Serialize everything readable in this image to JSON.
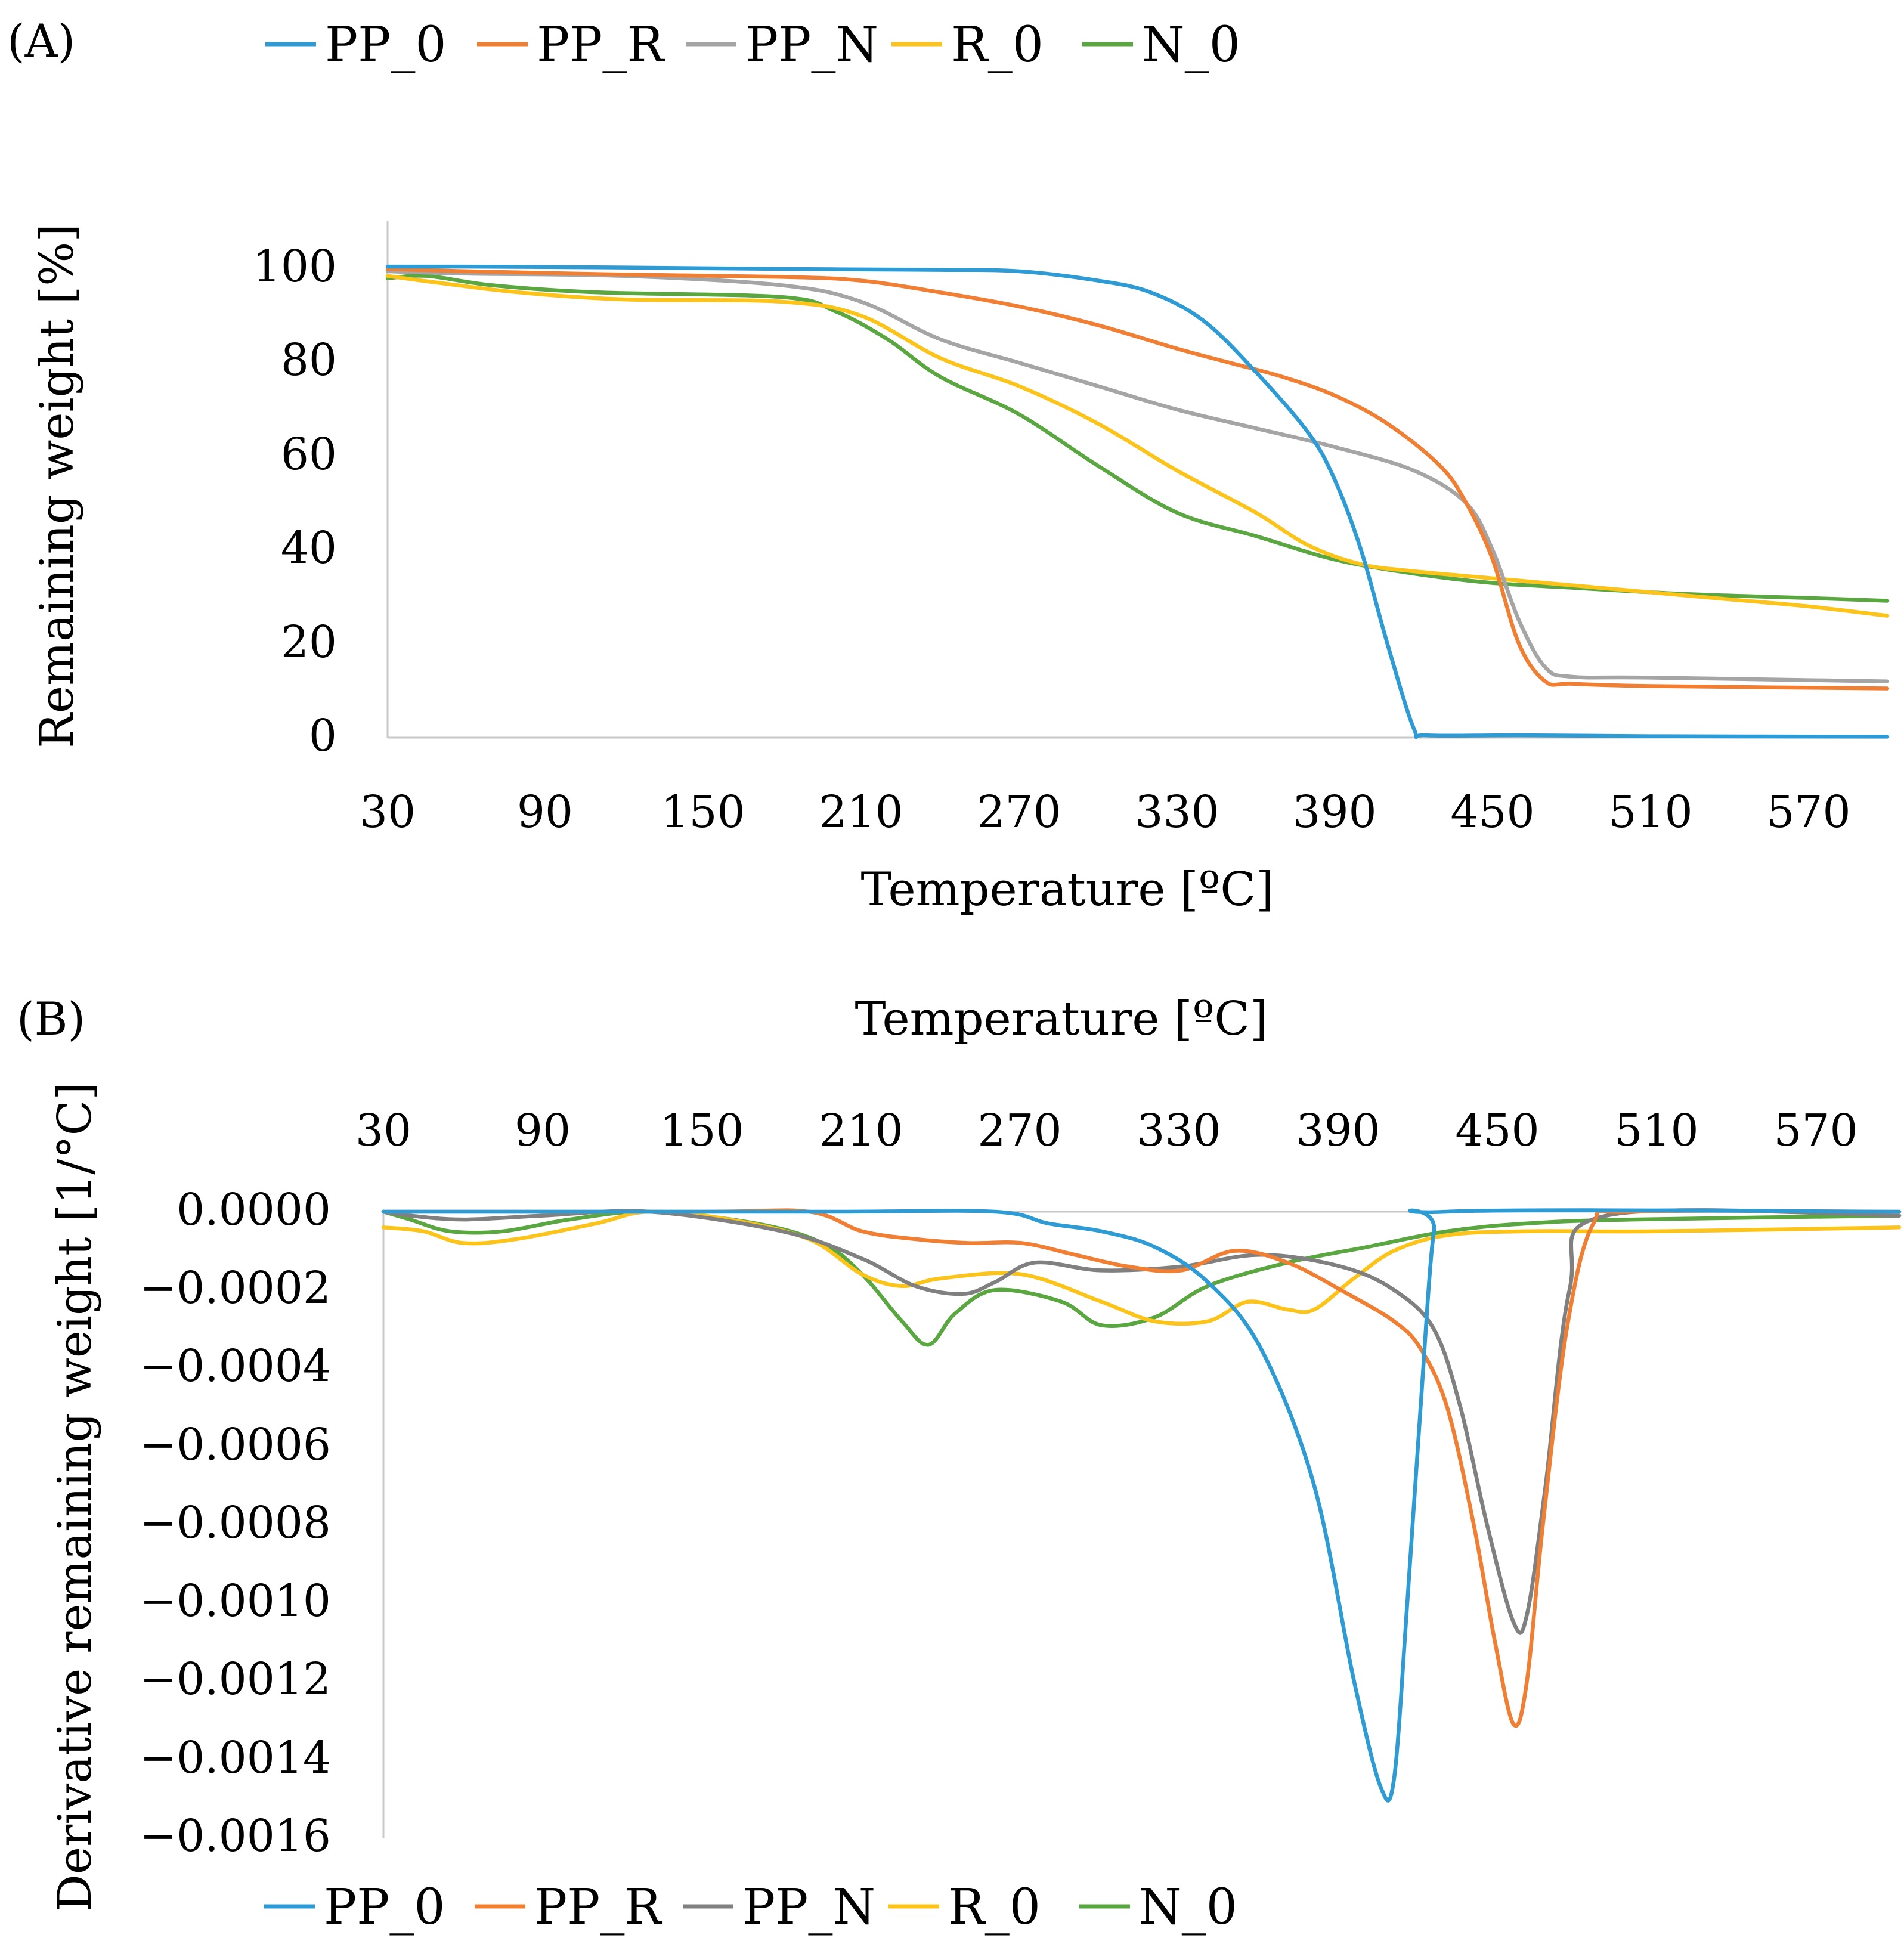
{
  "figure": {
    "colors": {
      "PP_0": "#2e9bd4",
      "PP_R": "#f07f33",
      "PP_N_A": "#a5a5a5",
      "PP_N_B": "#808080",
      "R_0": "#fcc31a",
      "N_0": "#5aa640"
    }
  },
  "chart_data": [
    {
      "panel_label": "(A)",
      "type": "line",
      "title": "",
      "xlabel": "Temperature [ºC]",
      "ylabel": "Remaining weight [%]",
      "xlim": [
        30,
        600
      ],
      "ylim": [
        0,
        110
      ],
      "x_ticks": [
        "30",
        "90",
        "150",
        "210",
        "270",
        "330",
        "390",
        "450",
        "510",
        "570"
      ],
      "y_ticks": [
        "100",
        "80",
        "60",
        "40",
        "20",
        "0"
      ],
      "legend": [
        "PP_0",
        "PP_R",
        "PP_N",
        "R_0",
        "N_0"
      ],
      "legend_position": "top",
      "series": [
        {
          "name": "PP_0",
          "color": "#2e9bd4",
          "points": [
            [
              30,
              100.5
            ],
            [
              60,
              100.5
            ],
            [
              120,
              100.3
            ],
            [
              180,
              100
            ],
            [
              240,
              99.8
            ],
            [
              270,
              99.5
            ],
            [
              300,
              97.5
            ],
            [
              320,
              95
            ],
            [
              340,
              89
            ],
            [
              360,
              78
            ],
            [
              380,
              65
            ],
            [
              390,
              55
            ],
            [
              400,
              40
            ],
            [
              410,
              20
            ],
            [
              420,
              2
            ],
            [
              425,
              0.5
            ],
            [
              460,
              0.5
            ],
            [
              510,
              0.3
            ],
            [
              600,
              0.2
            ]
          ]
        },
        {
          "name": "PP_R",
          "color": "#f07f33",
          "points": [
            [
              30,
              100
            ],
            [
              60,
              99.5
            ],
            [
              120,
              98.8
            ],
            [
              180,
              98.3
            ],
            [
              210,
              97.5
            ],
            [
              240,
              95
            ],
            [
              270,
              92
            ],
            [
              300,
              88
            ],
            [
              330,
              83
            ],
            [
              350,
              80
            ],
            [
              370,
              77
            ],
            [
              390,
              73
            ],
            [
              410,
              67
            ],
            [
              430,
              58
            ],
            [
              440,
              50
            ],
            [
              450,
              38
            ],
            [
              460,
              20
            ],
            [
              470,
              12
            ],
            [
              480,
              11.5
            ],
            [
              510,
              11
            ],
            [
              600,
              10.5
            ]
          ]
        },
        {
          "name": "PP_N",
          "color": "#a5a5a5",
          "points": [
            [
              30,
              99.5
            ],
            [
              60,
              99
            ],
            [
              120,
              98.5
            ],
            [
              180,
              96.5
            ],
            [
              210,
              93
            ],
            [
              240,
              85
            ],
            [
              270,
              80
            ],
            [
              300,
              75
            ],
            [
              330,
              70
            ],
            [
              360,
              66
            ],
            [
              390,
              62
            ],
            [
              420,
              57
            ],
            [
              440,
              50
            ],
            [
              450,
              40
            ],
            [
              460,
              25
            ],
            [
              470,
              15
            ],
            [
              480,
              13
            ],
            [
              510,
              12.8
            ],
            [
              600,
              12
            ]
          ]
        },
        {
          "name": "R_0",
          "color": "#fcc31a",
          "points": [
            [
              30,
              98.5
            ],
            [
              50,
              97
            ],
            [
              80,
              95
            ],
            [
              120,
              93.5
            ],
            [
              180,
              93
            ],
            [
              210,
              90
            ],
            [
              240,
              81
            ],
            [
              270,
              75
            ],
            [
              300,
              67
            ],
            [
              330,
              57
            ],
            [
              360,
              48
            ],
            [
              380,
              41
            ],
            [
              400,
              37
            ],
            [
              420,
              35.5
            ],
            [
              450,
              34
            ],
            [
              480,
              32.5
            ],
            [
              510,
              31
            ],
            [
              540,
              29.5
            ],
            [
              570,
              28
            ],
            [
              600,
              26
            ]
          ]
        },
        {
          "name": "N_0",
          "color": "#5aa640",
          "points": [
            [
              30,
              98
            ],
            [
              45,
              98.5
            ],
            [
              70,
              96.5
            ],
            [
              110,
              95
            ],
            [
              180,
              94
            ],
            [
              200,
              91
            ],
            [
              220,
              85
            ],
            [
              240,
              77
            ],
            [
              270,
              69
            ],
            [
              300,
              58
            ],
            [
              330,
              48
            ],
            [
              360,
              43
            ],
            [
              390,
              38
            ],
            [
              420,
              35
            ],
            [
              450,
              33
            ],
            [
              480,
              32
            ],
            [
              510,
              31
            ],
            [
              540,
              30.3
            ],
            [
              570,
              29.8
            ],
            [
              600,
              29.2
            ]
          ]
        }
      ]
    },
    {
      "panel_label": "(B)",
      "type": "line",
      "title": "",
      "xlabel": "Temperature [ºC]",
      "ylabel": "Derivative remaining weight [1/°C]",
      "xlim": [
        30,
        600
      ],
      "ylim": [
        -0.0016,
        0
      ],
      "x_ticks": [
        "30",
        "90",
        "150",
        "210",
        "270",
        "330",
        "390",
        "450",
        "510",
        "570"
      ],
      "y_ticks": [
        "0.0000",
        "−0.0002",
        "−0.0004",
        "−0.0006",
        "−0.0008",
        "−0.0010",
        "−0.0012",
        "−0.0014",
        "−0.0016"
      ],
      "legend": [
        "PP_0",
        "PP_R",
        "PP_N",
        "R_0",
        "N_0"
      ],
      "legend_position": "bottom",
      "series": [
        {
          "name": "PP_0",
          "color": "#2e9bd4",
          "points": [
            [
              30,
              0
            ],
            [
              100,
              0
            ],
            [
              200,
              0
            ],
            [
              260,
              0
            ],
            [
              280,
              -3e-05
            ],
            [
              300,
              -5e-05
            ],
            [
              320,
              -9e-05
            ],
            [
              340,
              -0.00018
            ],
            [
              360,
              -0.00035
            ],
            [
              380,
              -0.0007
            ],
            [
              395,
              -0.0012
            ],
            [
              405,
              -0.00147
            ],
            [
              410,
              -0.00145
            ],
            [
              415,
              -0.001
            ],
            [
              420,
              -0.0005
            ],
            [
              425,
              -5e-05
            ],
            [
              430,
              0
            ],
            [
              600,
              0
            ]
          ]
        },
        {
          "name": "PP_R",
          "color": "#f07f33",
          "points": [
            [
              30,
              0
            ],
            [
              150,
              0
            ],
            [
              190,
              0
            ],
            [
              210,
              -5e-05
            ],
            [
              230,
              -7e-05
            ],
            [
              250,
              -8e-05
            ],
            [
              270,
              -8e-05
            ],
            [
              290,
              -0.00011
            ],
            [
              310,
              -0.00014
            ],
            [
              330,
              -0.00015
            ],
            [
              350,
              -0.0001
            ],
            [
              370,
              -0.00013
            ],
            [
              390,
              -0.0002
            ],
            [
              410,
              -0.00028
            ],
            [
              420,
              -0.00035
            ],
            [
              430,
              -0.0005
            ],
            [
              440,
              -0.0008
            ],
            [
              448,
              -0.0011
            ],
            [
              455,
              -0.00131
            ],
            [
              460,
              -0.0012
            ],
            [
              466,
              -0.0008
            ],
            [
              475,
              -0.0003
            ],
            [
              485,
              -3e-05
            ],
            [
              500,
              0
            ],
            [
              600,
              0
            ]
          ]
        },
        {
          "name": "PP_N",
          "color": "#808080",
          "points": [
            [
              30,
              0
            ],
            [
              40,
              -1e-05
            ],
            [
              60,
              -2e-05
            ],
            [
              90,
              -1e-05
            ],
            [
              130,
              0
            ],
            [
              180,
              -5e-05
            ],
            [
              210,
              -0.00012
            ],
            [
              230,
              -0.00019
            ],
            [
              248,
              -0.00021
            ],
            [
              260,
              -0.00018
            ],
            [
              275,
              -0.00013
            ],
            [
              300,
              -0.00015
            ],
            [
              330,
              -0.00014
            ],
            [
              360,
              -0.00011
            ],
            [
              390,
              -0.00014
            ],
            [
              410,
              -0.0002
            ],
            [
              425,
              -0.0003
            ],
            [
              435,
              -0.0005
            ],
            [
              445,
              -0.0008
            ],
            [
              455,
              -0.00105
            ],
            [
              460,
              -0.00103
            ],
            [
              467,
              -0.0007
            ],
            [
              476,
              -0.0002
            ],
            [
              490,
              -1e-05
            ],
            [
              600,
              -1e-05
            ]
          ]
        },
        {
          "name": "R_0",
          "color": "#fcc31a",
          "points": [
            [
              30,
              -4e-05
            ],
            [
              45,
              -5e-05
            ],
            [
              60,
              -8e-05
            ],
            [
              80,
              -7e-05
            ],
            [
              110,
              -3e-05
            ],
            [
              130,
              0
            ],
            [
              160,
              -2e-05
            ],
            [
              190,
              -7e-05
            ],
            [
              210,
              -0.00016
            ],
            [
              225,
              -0.00019
            ],
            [
              240,
              -0.00017
            ],
            [
              270,
              -0.00016
            ],
            [
              300,
              -0.00023
            ],
            [
              320,
              -0.00028
            ],
            [
              340,
              -0.00028
            ],
            [
              355,
              -0.00023
            ],
            [
              370,
              -0.00025
            ],
            [
              380,
              -0.00025
            ],
            [
              395,
              -0.00017
            ],
            [
              410,
              -0.0001
            ],
            [
              430,
              -6e-05
            ],
            [
              460,
              -5e-05
            ],
            [
              510,
              -5e-05
            ],
            [
              600,
              -4e-05
            ]
          ]
        },
        {
          "name": "N_0",
          "color": "#5aa640",
          "points": [
            [
              30,
              0
            ],
            [
              40,
              -2e-05
            ],
            [
              55,
              -5e-05
            ],
            [
              75,
              -5e-05
            ],
            [
              100,
              -2e-05
            ],
            [
              130,
              0
            ],
            [
              170,
              -3e-05
            ],
            [
              195,
              -8e-05
            ],
            [
              210,
              -0.00016
            ],
            [
              225,
              -0.00028
            ],
            [
              235,
              -0.00034
            ],
            [
              245,
              -0.00026
            ],
            [
              260,
              -0.0002
            ],
            [
              285,
              -0.00023
            ],
            [
              300,
              -0.00029
            ],
            [
              320,
              -0.00027
            ],
            [
              340,
              -0.00019
            ],
            [
              370,
              -0.00013
            ],
            [
              400,
              -9e-05
            ],
            [
              430,
              -5e-05
            ],
            [
              460,
              -3e-05
            ],
            [
              500,
              -2e-05
            ],
            [
              600,
              -1e-05
            ]
          ]
        }
      ]
    }
  ]
}
